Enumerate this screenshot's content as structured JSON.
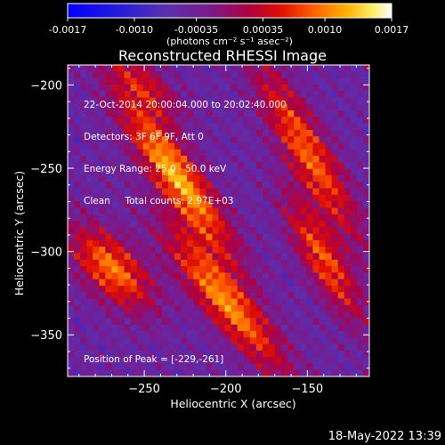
{
  "colorbar": {
    "ticks": [
      "-0.0017",
      "-0.0010",
      "-0.00035",
      "0.00035",
      "0.0010",
      "0.0017"
    ],
    "tick_values": [
      -0.0017,
      -0.001,
      -0.00035,
      0.00035,
      0.001,
      0.0017
    ],
    "range": [
      -0.0017,
      0.0017
    ],
    "units": "(photons cm⁻² s⁻¹ asec⁻²)"
  },
  "annotations": {
    "time_range": "22-Oct-2014 20:00:04.000 to 20:02:40.000",
    "detectors": "Detectors: 3F 6F 9F, Att 0",
    "energy": "Energy Range: 25.0 - 50.0 keV",
    "clean": "Clean     Total counts: 2.97E+03",
    "peak": "Position of Peak = [-229,-261]"
  },
  "timestamp": "18-May-2022 13:39",
  "chart_data": {
    "type": "heatmap",
    "title": "Reconstructed RHESSI Image",
    "xlabel": "Heliocentric X (arcsec)",
    "ylabel": "Heliocentric Y (arcsec)",
    "xlim": [
      -297,
      -112
    ],
    "ylim": [
      -375,
      -188
    ],
    "xticks": [
      -250,
      -200,
      -150
    ],
    "yticks": [
      -200,
      -250,
      -300,
      -350
    ],
    "xtick_labels": [
      "−250",
      "−200",
      "−150"
    ],
    "ytick_labels": [
      "−200",
      "−250",
      "−300",
      "−350"
    ],
    "colormap": "rainbow-blue-purple-red-yellow-white",
    "peak": [
      -229,
      -261
    ],
    "sources": [
      {
        "x": -230,
        "y": -255,
        "amplitude": 0.0017,
        "sigma_major": 40,
        "sigma_minor": 9,
        "angle_deg": -55
      },
      {
        "x": -200,
        "y": -330,
        "amplitude": 0.0015,
        "sigma_major": 38,
        "sigma_minor": 9,
        "angle_deg": -50
      },
      {
        "x": -150,
        "y": -240,
        "amplitude": 0.0013,
        "sigma_major": 42,
        "sigma_minor": 9,
        "angle_deg": -60
      },
      {
        "x": -140,
        "y": -305,
        "amplitude": 0.0012,
        "sigma_major": 30,
        "sigma_minor": 8,
        "angle_deg": -60
      },
      {
        "x": -270,
        "y": -310,
        "amplitude": 0.0014,
        "sigma_major": 22,
        "sigma_minor": 11,
        "angle_deg": -45
      },
      {
        "x": -250,
        "y": -200,
        "amplitude": 0.0008,
        "sigma_major": 20,
        "sigma_minor": 8,
        "angle_deg": -40
      }
    ]
  }
}
